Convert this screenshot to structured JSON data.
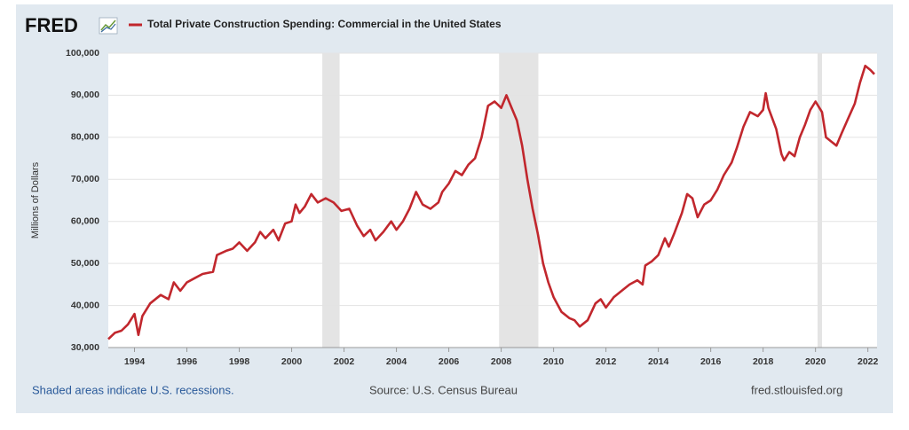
{
  "chart_data": {
    "type": "line",
    "brand": "FRED",
    "ylabel": "Millions of Dollars",
    "series": [
      {
        "name": "Total Private Construction Spending: Commercial in the United States",
        "color": "#c1272d",
        "values": [
          32000,
          33500,
          34000,
          35500,
          38000,
          33000,
          37500,
          40500,
          42500,
          41500,
          45500,
          43500,
          45500,
          46500,
          47500,
          48000,
          52000,
          53000,
          53500,
          55000,
          53000,
          55000,
          57500,
          56000,
          58000,
          55500,
          59500,
          60000,
          64000,
          62000,
          63500,
          66500,
          64500,
          65500,
          64500,
          62500,
          63000,
          59000,
          56500,
          58000,
          55500,
          57500,
          60000,
          58000,
          60000,
          63000,
          67000,
          64000,
          63000,
          64500,
          67000,
          69000,
          72000,
          71000,
          73500,
          75000,
          80000,
          87500,
          88500,
          87000,
          90000,
          87000,
          84000,
          78000,
          70000,
          63000,
          57000,
          50000,
          45500,
          42000,
          38500,
          37000,
          36500,
          35000,
          36500,
          40500,
          41500,
          39500,
          42000,
          43500,
          45000,
          46000,
          45000,
          49500,
          50500,
          52000,
          56000,
          54000,
          57000,
          62000,
          66500,
          65500,
          61000,
          64000,
          65000,
          67500,
          71000,
          74000,
          77500,
          82500,
          86000,
          85000,
          86500,
          90500,
          87000,
          82000,
          76000,
          74500,
          76500,
          75500,
          80000,
          83000,
          86500,
          88500,
          86000,
          80000,
          79000,
          78000,
          81000,
          84500,
          88000,
          93000,
          97000,
          96000,
          95000
        ]
      }
    ],
    "x": [
      1993.0,
      1993.25,
      1993.5,
      1993.75,
      1994.0,
      1994.15,
      1994.3,
      1994.6,
      1995.0,
      1995.3,
      1995.5,
      1995.75,
      1996.0,
      1996.3,
      1996.6,
      1997.0,
      1997.15,
      1997.5,
      1997.75,
      1998.0,
      1998.3,
      1998.6,
      1998.8,
      1999.0,
      1999.3,
      1999.5,
      1999.75,
      2000.0,
      2000.15,
      2000.3,
      2000.5,
      2000.75,
      2001.0,
      2001.3,
      2001.6,
      2001.9,
      2002.2,
      2002.5,
      2002.75,
      2003.0,
      2003.2,
      2003.5,
      2003.8,
      2004.0,
      2004.25,
      2004.5,
      2004.75,
      2005.0,
      2005.3,
      2005.6,
      2005.75,
      2006.0,
      2006.25,
      2006.5,
      2006.75,
      2007.0,
      2007.25,
      2007.5,
      2007.75,
      2008.0,
      2008.2,
      2008.4,
      2008.6,
      2008.8,
      2009.0,
      2009.2,
      2009.4,
      2009.6,
      2009.8,
      2010.0,
      2010.3,
      2010.6,
      2010.8,
      2011.0,
      2011.3,
      2011.6,
      2011.8,
      2012.0,
      2012.3,
      2012.6,
      2012.9,
      2013.2,
      2013.4,
      2013.5,
      2013.75,
      2014.0,
      2014.25,
      2014.4,
      2014.6,
      2014.9,
      2015.1,
      2015.3,
      2015.5,
      2015.75,
      2016.0,
      2016.25,
      2016.5,
      2016.8,
      2017.0,
      2017.25,
      2017.5,
      2017.8,
      2018.0,
      2018.1,
      2018.2,
      2018.5,
      2018.7,
      2018.8,
      2019.0,
      2019.2,
      2019.4,
      2019.6,
      2019.8,
      2020.0,
      2020.25,
      2020.4,
      2020.6,
      2020.8,
      2021.0,
      2021.25,
      2021.5,
      2021.7,
      2021.9,
      2022.1,
      2022.25
    ],
    "recessions": [
      [
        2001.17,
        2001.83
      ],
      [
        2007.92,
        2009.42
      ],
      [
        2020.08,
        2020.25
      ]
    ],
    "xlim": [
      1993.0,
      2022.35
    ],
    "xticks": [
      1994,
      1996,
      1998,
      2000,
      2002,
      2004,
      2006,
      2008,
      2010,
      2012,
      2014,
      2016,
      2018,
      2020,
      2022
    ],
    "ylim": [
      30000,
      100000
    ],
    "yticks": [
      {
        "value": 30000,
        "label": "30,000"
      },
      {
        "value": 40000,
        "label": "40,000"
      },
      {
        "value": 50000,
        "label": "50,000"
      },
      {
        "value": 60000,
        "label": "60,000"
      },
      {
        "value": 70000,
        "label": "70,000"
      },
      {
        "value": 80000,
        "label": "80,000"
      },
      {
        "value": 90000,
        "label": "90,000"
      },
      {
        "value": 100000,
        "label": "100,000"
      }
    ],
    "grid": true,
    "notes": {
      "recession": "Shaded areas indicate U.S. recessions.",
      "source": "Source: U.S. Census Bureau",
      "site": "fred.stlouisfed.org"
    }
  }
}
